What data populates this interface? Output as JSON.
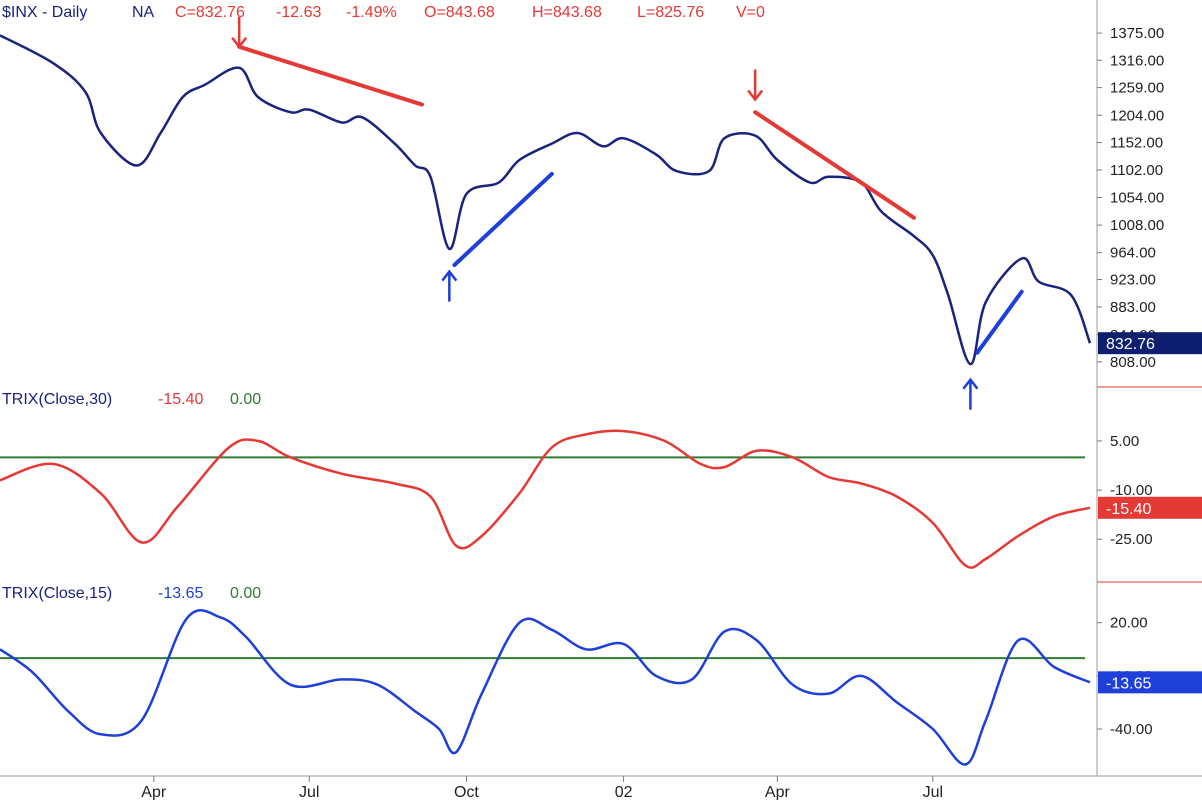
{
  "header": {
    "symbol": "$INX - Daily",
    "exchange": "NA",
    "close": "C=832.76",
    "change": "-12.63",
    "change_pct": "-1.49%",
    "open": "O=843.68",
    "high": "H=843.68",
    "low": "L=825.76",
    "volume": "V=0"
  },
  "colors": {
    "price_line": "#1a237e",
    "trix30_line": "#e53935",
    "trix15_line": "#1e3fd8",
    "zero_line": "#2e7d32",
    "down_annotation": "#e53935",
    "up_annotation": "#1e3fd8",
    "price_badge": "#0d1f6e",
    "trix30_badge": "#e53935",
    "trix15_badge": "#1e3fd8",
    "separator": "#e53935"
  },
  "chart_data": [
    {
      "type": "line",
      "panel": "price",
      "scale": "log",
      "series": [
        {
          "name": "$INX - Daily",
          "x": [
            "2001-01-01",
            "2001-02-01",
            "2001-02-20",
            "2001-03-01",
            "2001-03-22",
            "2001-04-05",
            "2001-04-18",
            "2001-05-01",
            "2001-05-21",
            "2001-06-01",
            "2001-06-20",
            "2001-07-01",
            "2001-07-20",
            "2001-08-01",
            "2001-08-20",
            "2001-09-01",
            "2001-09-10",
            "2001-09-21",
            "2001-10-01",
            "2001-10-20",
            "2001-11-01",
            "2001-11-20",
            "2001-12-05",
            "2001-12-20",
            "2002-01-01",
            "2002-01-20",
            "2002-02-01",
            "2002-02-20",
            "2002-03-01",
            "2002-03-19",
            "2002-04-01",
            "2002-04-20",
            "2002-05-01",
            "2002-05-20",
            "2002-06-01",
            "2002-06-20",
            "2002-07-01",
            "2002-07-10",
            "2002-07-23",
            "2002-08-01",
            "2002-08-22",
            "2002-09-01",
            "2002-09-20",
            "2002-10-01"
          ],
          "values": [
            1370,
            1310,
            1250,
            1170,
            1110,
            1170,
            1240,
            1265,
            1300,
            1240,
            1210,
            1215,
            1190,
            1200,
            1150,
            1110,
            1090,
            970,
            1060,
            1080,
            1120,
            1150,
            1170,
            1145,
            1160,
            1130,
            1100,
            1100,
            1160,
            1165,
            1120,
            1080,
            1090,
            1080,
            1030,
            990,
            960,
            900,
            805,
            890,
            955,
            920,
            900,
            832.76
          ]
        }
      ],
      "ylim": [
        800,
        1400
      ],
      "y_ticks": [
        "1375.00",
        "1316.00",
        "1259.00",
        "1204.00",
        "1152.00",
        "1102.00",
        "1054.00",
        "1008.00",
        "964.00",
        "923.00",
        "883.00",
        "844.00",
        "808.00"
      ],
      "last_value_label": "832.76",
      "annotations": [
        {
          "type": "down-arrow",
          "x": "2001-05-21",
          "y": 1345
        },
        {
          "type": "trendline",
          "color": "red",
          "from": [
            "2001-05-21",
            1345
          ],
          "to": [
            "2001-09-05",
            1225
          ]
        },
        {
          "type": "down-arrow",
          "x": "2002-03-19",
          "y": 1235
        },
        {
          "type": "trendline",
          "color": "red",
          "from": [
            "2002-03-19",
            1210
          ],
          "to": [
            "2002-06-20",
            1020
          ]
        },
        {
          "type": "up-arrow",
          "x": "2001-09-21",
          "y": 935
        },
        {
          "type": "trendline",
          "color": "blue",
          "from": [
            "2001-09-24",
            945
          ],
          "to": [
            "2001-11-20",
            1095
          ]
        },
        {
          "type": "up-arrow",
          "x": "2002-07-23",
          "y": 785
        },
        {
          "type": "trendline",
          "color": "blue",
          "from": [
            "2002-07-27",
            820
          ],
          "to": [
            "2002-08-22",
            905
          ]
        }
      ]
    },
    {
      "type": "line",
      "panel": "trix30",
      "title": "TRIX(Close,30)",
      "legend_value": "-15.40",
      "legend_signal": "0.00",
      "series": [
        {
          "name": "TRIX(Close,30)",
          "x": [
            "2001-01-01",
            "2001-02-01",
            "2001-03-01",
            "2001-03-25",
            "2001-04-15",
            "2001-05-15",
            "2001-06-01",
            "2001-06-20",
            "2001-07-20",
            "2001-08-20",
            "2001-09-10",
            "2001-09-25",
            "2001-10-10",
            "2001-11-01",
            "2001-11-20",
            "2001-12-10",
            "2002-01-01",
            "2002-01-25",
            "2002-02-15",
            "2002-03-01",
            "2002-03-20",
            "2002-04-10",
            "2002-05-01",
            "2002-05-20",
            "2002-06-10",
            "2002-07-01",
            "2002-07-20",
            "2002-08-01",
            "2002-08-20",
            "2002-09-10",
            "2002-10-01"
          ],
          "values": [
            -7,
            -2,
            -11,
            -26,
            -15,
            3,
            5,
            0,
            -5,
            -8,
            -12,
            -27,
            -24,
            -11,
            3,
            7,
            8,
            5,
            -2,
            -3,
            2,
            0,
            -6,
            -8,
            -12,
            -20,
            -33,
            -31,
            -24,
            -18,
            -15.4
          ]
        }
      ],
      "signal_value": 0,
      "ylim": [
        -35,
        12
      ],
      "y_ticks": [
        "5.00",
        "-10.00",
        "-25.00"
      ],
      "last_value_label": "-15.40"
    },
    {
      "type": "line",
      "panel": "trix15",
      "title": "TRIX(Close,15)",
      "legend_value": "-13.65",
      "legend_signal": "0.00",
      "series": [
        {
          "name": "TRIX(Close,15)",
          "x": [
            "2001-01-01",
            "2001-01-20",
            "2001-02-10",
            "2001-03-01",
            "2001-03-25",
            "2001-04-20",
            "2001-05-10",
            "2001-05-25",
            "2001-06-20",
            "2001-07-20",
            "2001-08-10",
            "2001-09-01",
            "2001-09-15",
            "2001-09-25",
            "2001-10-10",
            "2001-11-01",
            "2001-11-20",
            "2001-12-10",
            "2002-01-01",
            "2002-01-20",
            "2002-02-10",
            "2002-03-01",
            "2002-03-20",
            "2002-04-10",
            "2002-05-01",
            "2002-05-20",
            "2002-06-10",
            "2002-07-01",
            "2002-07-20",
            "2002-08-01",
            "2002-08-20",
            "2002-09-10",
            "2002-10-01"
          ],
          "values": [
            5,
            -8,
            -30,
            -43,
            -35,
            22,
            23,
            12,
            -15,
            -12,
            -15,
            -30,
            -40,
            -53,
            -20,
            20,
            16,
            5,
            8,
            -10,
            -12,
            15,
            10,
            -15,
            -20,
            -10,
            -25,
            -40,
            -60,
            -35,
            10,
            -5,
            -13.65
          ]
        }
      ],
      "signal_value": 0,
      "ylim": [
        -62,
        30
      ],
      "y_ticks": [
        "20.00",
        "-10.00",
        "-40.00"
      ],
      "last_value_label": "-13.65"
    }
  ],
  "x_axis": {
    "labels": [
      {
        "text": "Apr",
        "x": "2001-04-01"
      },
      {
        "text": "Jul",
        "x": "2001-07-01"
      },
      {
        "text": "Oct",
        "x": "2001-10-01"
      },
      {
        "text": "02",
        "x": "2002-01-01"
      },
      {
        "text": "Apr",
        "x": "2002-04-01"
      },
      {
        "text": "Jul",
        "x": "2002-07-01"
      }
    ]
  }
}
